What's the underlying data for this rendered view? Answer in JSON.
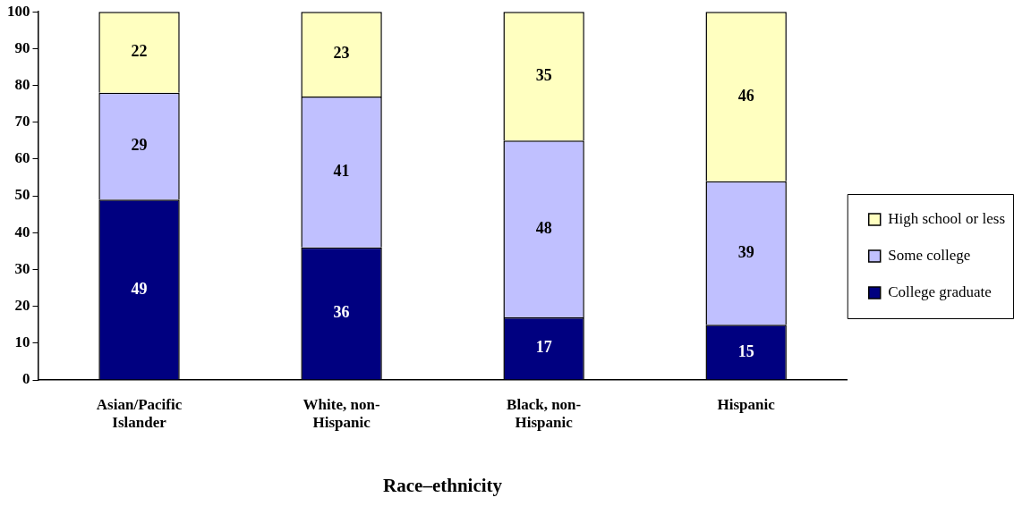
{
  "chart_data": {
    "type": "bar",
    "stacked": true,
    "xlabel": "Race–ethnicity",
    "categories": [
      "Asian/Pacific Islander",
      "White, non-Hispanic",
      "Black, non-Hispanic",
      "Hispanic"
    ],
    "series": [
      {
        "name": "College graduate",
        "color": "#000080",
        "values": [
          49,
          36,
          17,
          15
        ]
      },
      {
        "name": "Some college",
        "color": "#c0c0ff",
        "values": [
          29,
          41,
          48,
          39
        ]
      },
      {
        "name": "High school or less",
        "color": "#ffffc0",
        "values": [
          22,
          23,
          35,
          46
        ]
      }
    ],
    "ylim": [
      0,
      100
    ],
    "yticks": [
      0,
      10,
      20,
      30,
      40,
      50,
      60,
      70,
      80,
      90,
      100
    ],
    "grid": false,
    "legend": "right",
    "data_labels": true
  }
}
